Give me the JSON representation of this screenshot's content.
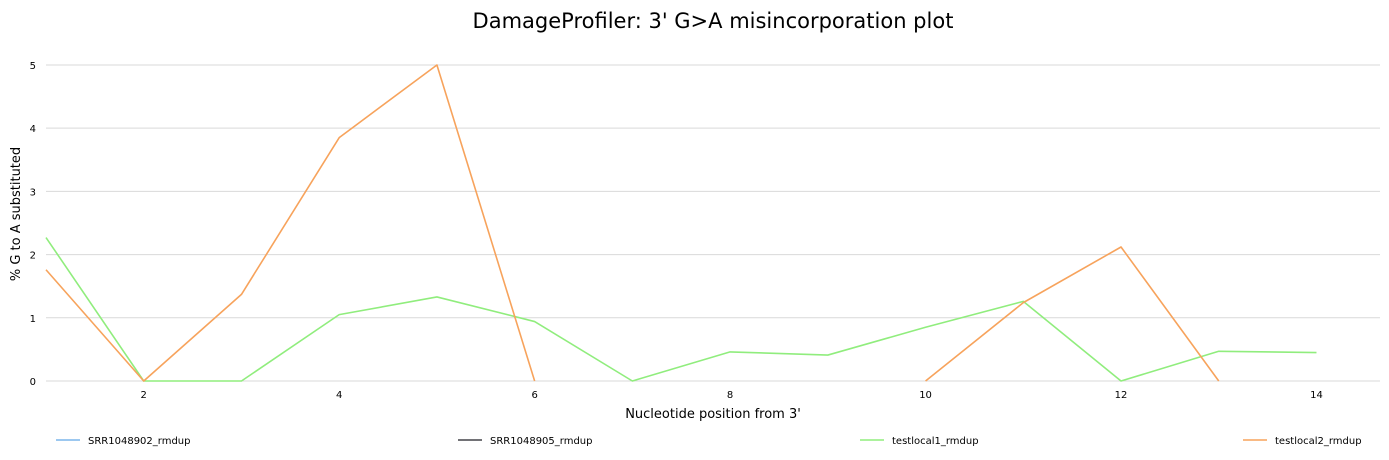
{
  "chart_data": {
    "type": "line",
    "title": "DamageProfiler: 3' G>A misincorporation plot",
    "xlabel": "Nucleotide position from 3'",
    "ylabel": "% G to A substituted",
    "xlim": [
      1,
      14.65
    ],
    "ylim": [
      0,
      5.3
    ],
    "xticks": [
      2,
      4,
      6,
      8,
      10,
      12,
      14
    ],
    "yticks": [
      0,
      1,
      2,
      3,
      4,
      5
    ],
    "grid": "horizontal",
    "legend_position": "bottom",
    "series": [
      {
        "name": "SRR1048902_rmdup",
        "color": "#7cb5ec",
        "points": []
      },
      {
        "name": "SRR1048905_rmdup",
        "color": "#434348",
        "points": []
      },
      {
        "name": "testlocal1_rmdup",
        "color": "#90ed7d",
        "points": [
          [
            1,
            2.27
          ],
          [
            2,
            0
          ],
          [
            3,
            0
          ],
          [
            4,
            1.05
          ],
          [
            5,
            1.33
          ],
          [
            6,
            0.94
          ],
          [
            7,
            0
          ],
          [
            8,
            0.46
          ],
          [
            9,
            0.41
          ],
          [
            10,
            0.85
          ],
          [
            11,
            1.26
          ],
          [
            12,
            0
          ],
          [
            13,
            0.47
          ],
          [
            14,
            0.45
          ]
        ]
      },
      {
        "name": "testlocal2_rmdup",
        "color": "#f7a35c",
        "points": [
          [
            1,
            1.76
          ],
          [
            2,
            0
          ],
          [
            3,
            1.37
          ],
          [
            4,
            3.85
          ],
          [
            5,
            5.0
          ],
          [
            6,
            0
          ],
          null,
          [
            10,
            0
          ],
          [
            11,
            1.24
          ],
          [
            12,
            2.12
          ],
          [
            13,
            0
          ]
        ]
      }
    ]
  }
}
